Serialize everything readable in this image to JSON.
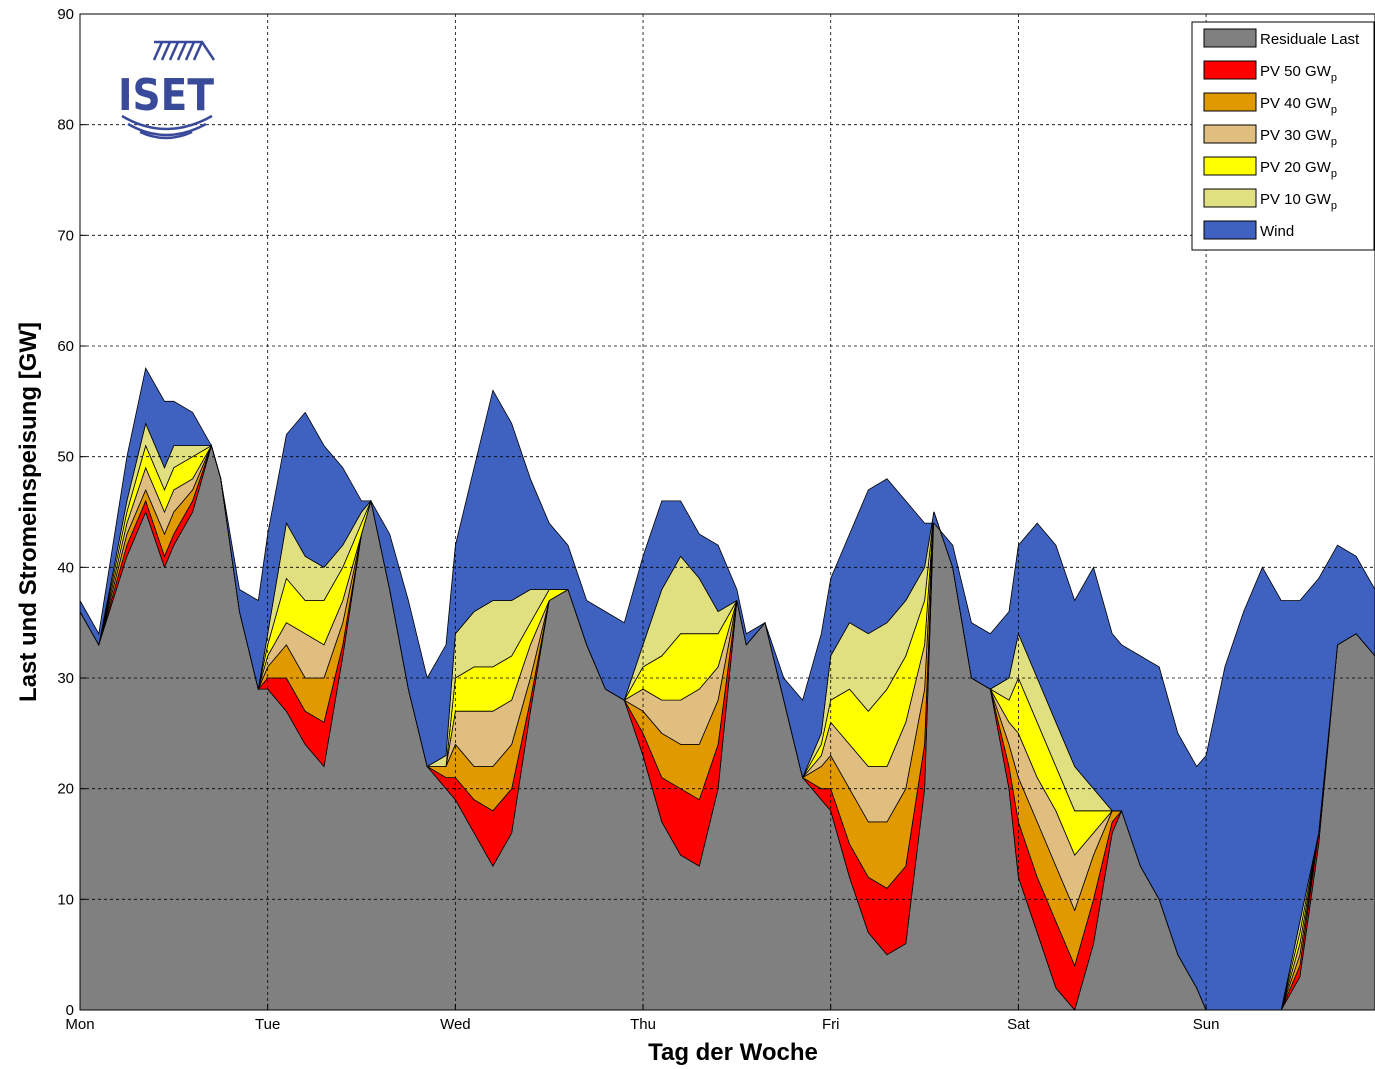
{
  "chart_data": {
    "type": "area",
    "title": "",
    "xlabel": "Tag der Woche",
    "ylabel": "Last und Stromeinspeisung [GW]",
    "ylim": [
      0,
      90
    ],
    "yticks": [
      0,
      10,
      20,
      30,
      40,
      50,
      60,
      70,
      80,
      90
    ],
    "xlim": [
      0,
      6.9
    ],
    "xticks": [
      {
        "x": 0,
        "label": "Mon"
      },
      {
        "x": 1,
        "label": "Tue"
      },
      {
        "x": 2,
        "label": "Wed"
      },
      {
        "x": 3,
        "label": "Thu"
      },
      {
        "x": 4,
        "label": "Fri"
      },
      {
        "x": 5,
        "label": "Sat"
      },
      {
        "x": 6,
        "label": "Sun"
      }
    ],
    "grid": true,
    "legend_position": "top-right",
    "logo_text": "ISET",
    "x": [
      0,
      0.1,
      0.25,
      0.35,
      0.45,
      0.5,
      0.6,
      0.7,
      0.75,
      0.85,
      0.95,
      1.0,
      1.1,
      1.2,
      1.3,
      1.4,
      1.5,
      1.55,
      1.65,
      1.75,
      1.85,
      1.95,
      2.0,
      2.1,
      2.2,
      2.3,
      2.4,
      2.5,
      2.6,
      2.7,
      2.8,
      2.9,
      3.0,
      3.1,
      3.2,
      3.3,
      3.4,
      3.5,
      3.55,
      3.65,
      3.75,
      3.85,
      3.95,
      4.0,
      4.1,
      4.2,
      4.3,
      4.4,
      4.5,
      4.55,
      4.65,
      4.75,
      4.85,
      4.95,
      5.0,
      5.1,
      5.2,
      5.3,
      5.4,
      5.5,
      5.55,
      5.65,
      5.75,
      5.85,
      5.95,
      6.0,
      6.1,
      6.2,
      6.3,
      6.4,
      6.5,
      6.6,
      6.7,
      6.8,
      6.9
    ],
    "series": [
      {
        "name": "Residuale Last",
        "color": "#808080",
        "values": [
          36,
          33,
          41,
          45,
          40,
          42,
          45,
          51,
          48,
          36,
          29,
          29,
          27,
          24,
          22,
          32,
          43,
          46,
          38,
          29,
          22,
          20,
          19,
          16,
          13,
          16,
          27,
          37,
          38,
          33,
          29,
          28,
          23,
          17,
          14,
          13,
          20,
          37,
          33,
          35,
          28,
          21,
          19,
          18,
          12,
          7,
          5,
          6,
          20,
          45,
          40,
          30,
          29,
          20,
          12,
          7,
          2,
          0,
          6,
          16,
          18,
          13,
          10,
          5,
          2,
          0,
          0,
          0,
          0,
          0,
          3,
          15,
          33,
          34,
          32
        ]
      },
      {
        "name": "PV 50 GW",
        "name_sub": "p",
        "color": "#ff0000",
        "values": [
          36,
          33,
          42,
          46,
          41,
          43,
          46,
          51,
          48,
          36,
          29,
          30,
          30,
          27,
          26,
          33,
          43,
          46,
          38,
          29,
          22,
          21,
          21,
          19,
          18,
          20,
          28,
          37,
          38,
          33,
          29,
          28,
          25,
          21,
          20,
          19,
          24,
          37,
          33,
          35,
          28,
          21,
          20,
          20,
          15,
          12,
          11,
          13,
          24,
          45,
          40,
          30,
          29,
          22,
          17,
          12,
          8,
          4,
          10,
          17,
          18,
          13,
          10,
          5,
          2,
          0,
          0,
          0,
          0,
          0,
          4,
          16,
          33,
          34,
          32
        ]
      },
      {
        "name": "PV 40 GW",
        "name_sub": "p",
        "color": "#e09a00",
        "values": [
          36,
          33,
          43,
          47,
          43,
          45,
          47,
          51,
          48,
          36,
          29,
          31,
          33,
          30,
          30,
          35,
          43,
          46,
          38,
          29,
          22,
          22,
          24,
          22,
          22,
          24,
          30,
          37,
          38,
          33,
          29,
          28,
          27,
          25,
          24,
          24,
          28,
          37,
          33,
          35,
          28,
          21,
          22,
          23,
          20,
          17,
          17,
          20,
          29,
          45,
          40,
          30,
          29,
          24,
          21,
          17,
          13,
          9,
          14,
          18,
          18,
          13,
          10,
          5,
          2,
          0,
          0,
          0,
          0,
          0,
          5,
          16,
          33,
          34,
          32
        ]
      },
      {
        "name": "PV 30 GW",
        "name_sub": "p",
        "color": "#e0be80",
        "values": [
          36,
          33,
          44,
          49,
          45,
          47,
          48,
          51,
          48,
          36,
          29,
          32,
          35,
          34,
          33,
          37,
          43,
          46,
          38,
          29,
          22,
          22,
          27,
          27,
          27,
          28,
          33,
          37,
          38,
          33,
          29,
          28,
          29,
          28,
          28,
          29,
          31,
          37,
          33,
          35,
          28,
          21,
          23,
          26,
          24,
          22,
          22,
          26,
          33,
          45,
          40,
          30,
          29,
          26,
          25,
          21,
          18,
          14,
          16,
          18,
          18,
          13,
          10,
          5,
          2,
          0,
          0,
          0,
          0,
          0,
          6,
          16,
          33,
          34,
          32
        ]
      },
      {
        "name": "PV 20 GW",
        "name_sub": "p",
        "color": "#ffff00",
        "values": [
          36,
          33,
          45,
          51,
          47,
          49,
          50,
          51,
          48,
          36,
          29,
          33,
          39,
          37,
          37,
          40,
          44,
          46,
          38,
          29,
          22,
          22,
          30,
          31,
          31,
          32,
          35,
          38,
          38,
          33,
          29,
          28,
          31,
          32,
          34,
          34,
          34,
          37,
          33,
          35,
          28,
          21,
          24,
          28,
          29,
          27,
          29,
          32,
          37,
          45,
          40,
          30,
          29,
          28,
          30,
          26,
          22,
          18,
          18,
          18,
          18,
          13,
          10,
          5,
          2,
          0,
          0,
          0,
          0,
          0,
          7,
          16,
          33,
          34,
          32
        ]
      },
      {
        "name": "PV 10 GW",
        "name_sub": "p",
        "color": "#e0e080",
        "values": [
          36,
          33,
          46,
          53,
          49,
          51,
          51,
          51,
          48,
          36,
          29,
          34,
          44,
          41,
          40,
          42,
          45,
          46,
          38,
          29,
          22,
          23,
          34,
          36,
          37,
          37,
          38,
          38,
          38,
          33,
          29,
          28,
          33,
          38,
          41,
          39,
          36,
          37,
          33,
          35,
          28,
          21,
          25,
          32,
          35,
          34,
          35,
          37,
          40,
          45,
          40,
          30,
          29,
          30,
          34,
          30,
          26,
          22,
          20,
          18,
          18,
          13,
          10,
          5,
          2,
          0,
          0,
          0,
          0,
          0,
          8,
          16,
          33,
          34,
          32
        ]
      },
      {
        "name": "Wind",
        "color": "#3f62c0",
        "values": [
          37,
          34,
          50,
          58,
          55,
          55,
          54,
          51,
          48,
          38,
          37,
          43,
          52,
          54,
          51,
          49,
          46,
          46,
          43,
          37,
          30,
          33,
          42,
          49,
          56,
          53,
          48,
          44,
          42,
          37,
          36,
          35,
          41,
          46,
          46,
          43,
          42,
          38,
          34,
          35,
          30,
          28,
          34,
          39,
          43,
          47,
          48,
          46,
          44,
          44,
          42,
          35,
          34,
          36,
          42,
          44,
          42,
          37,
          40,
          34,
          33,
          32,
          31,
          25,
          22,
          23,
          31,
          36,
          40,
          37,
          37,
          39,
          42,
          41,
          38
        ]
      }
    ]
  }
}
